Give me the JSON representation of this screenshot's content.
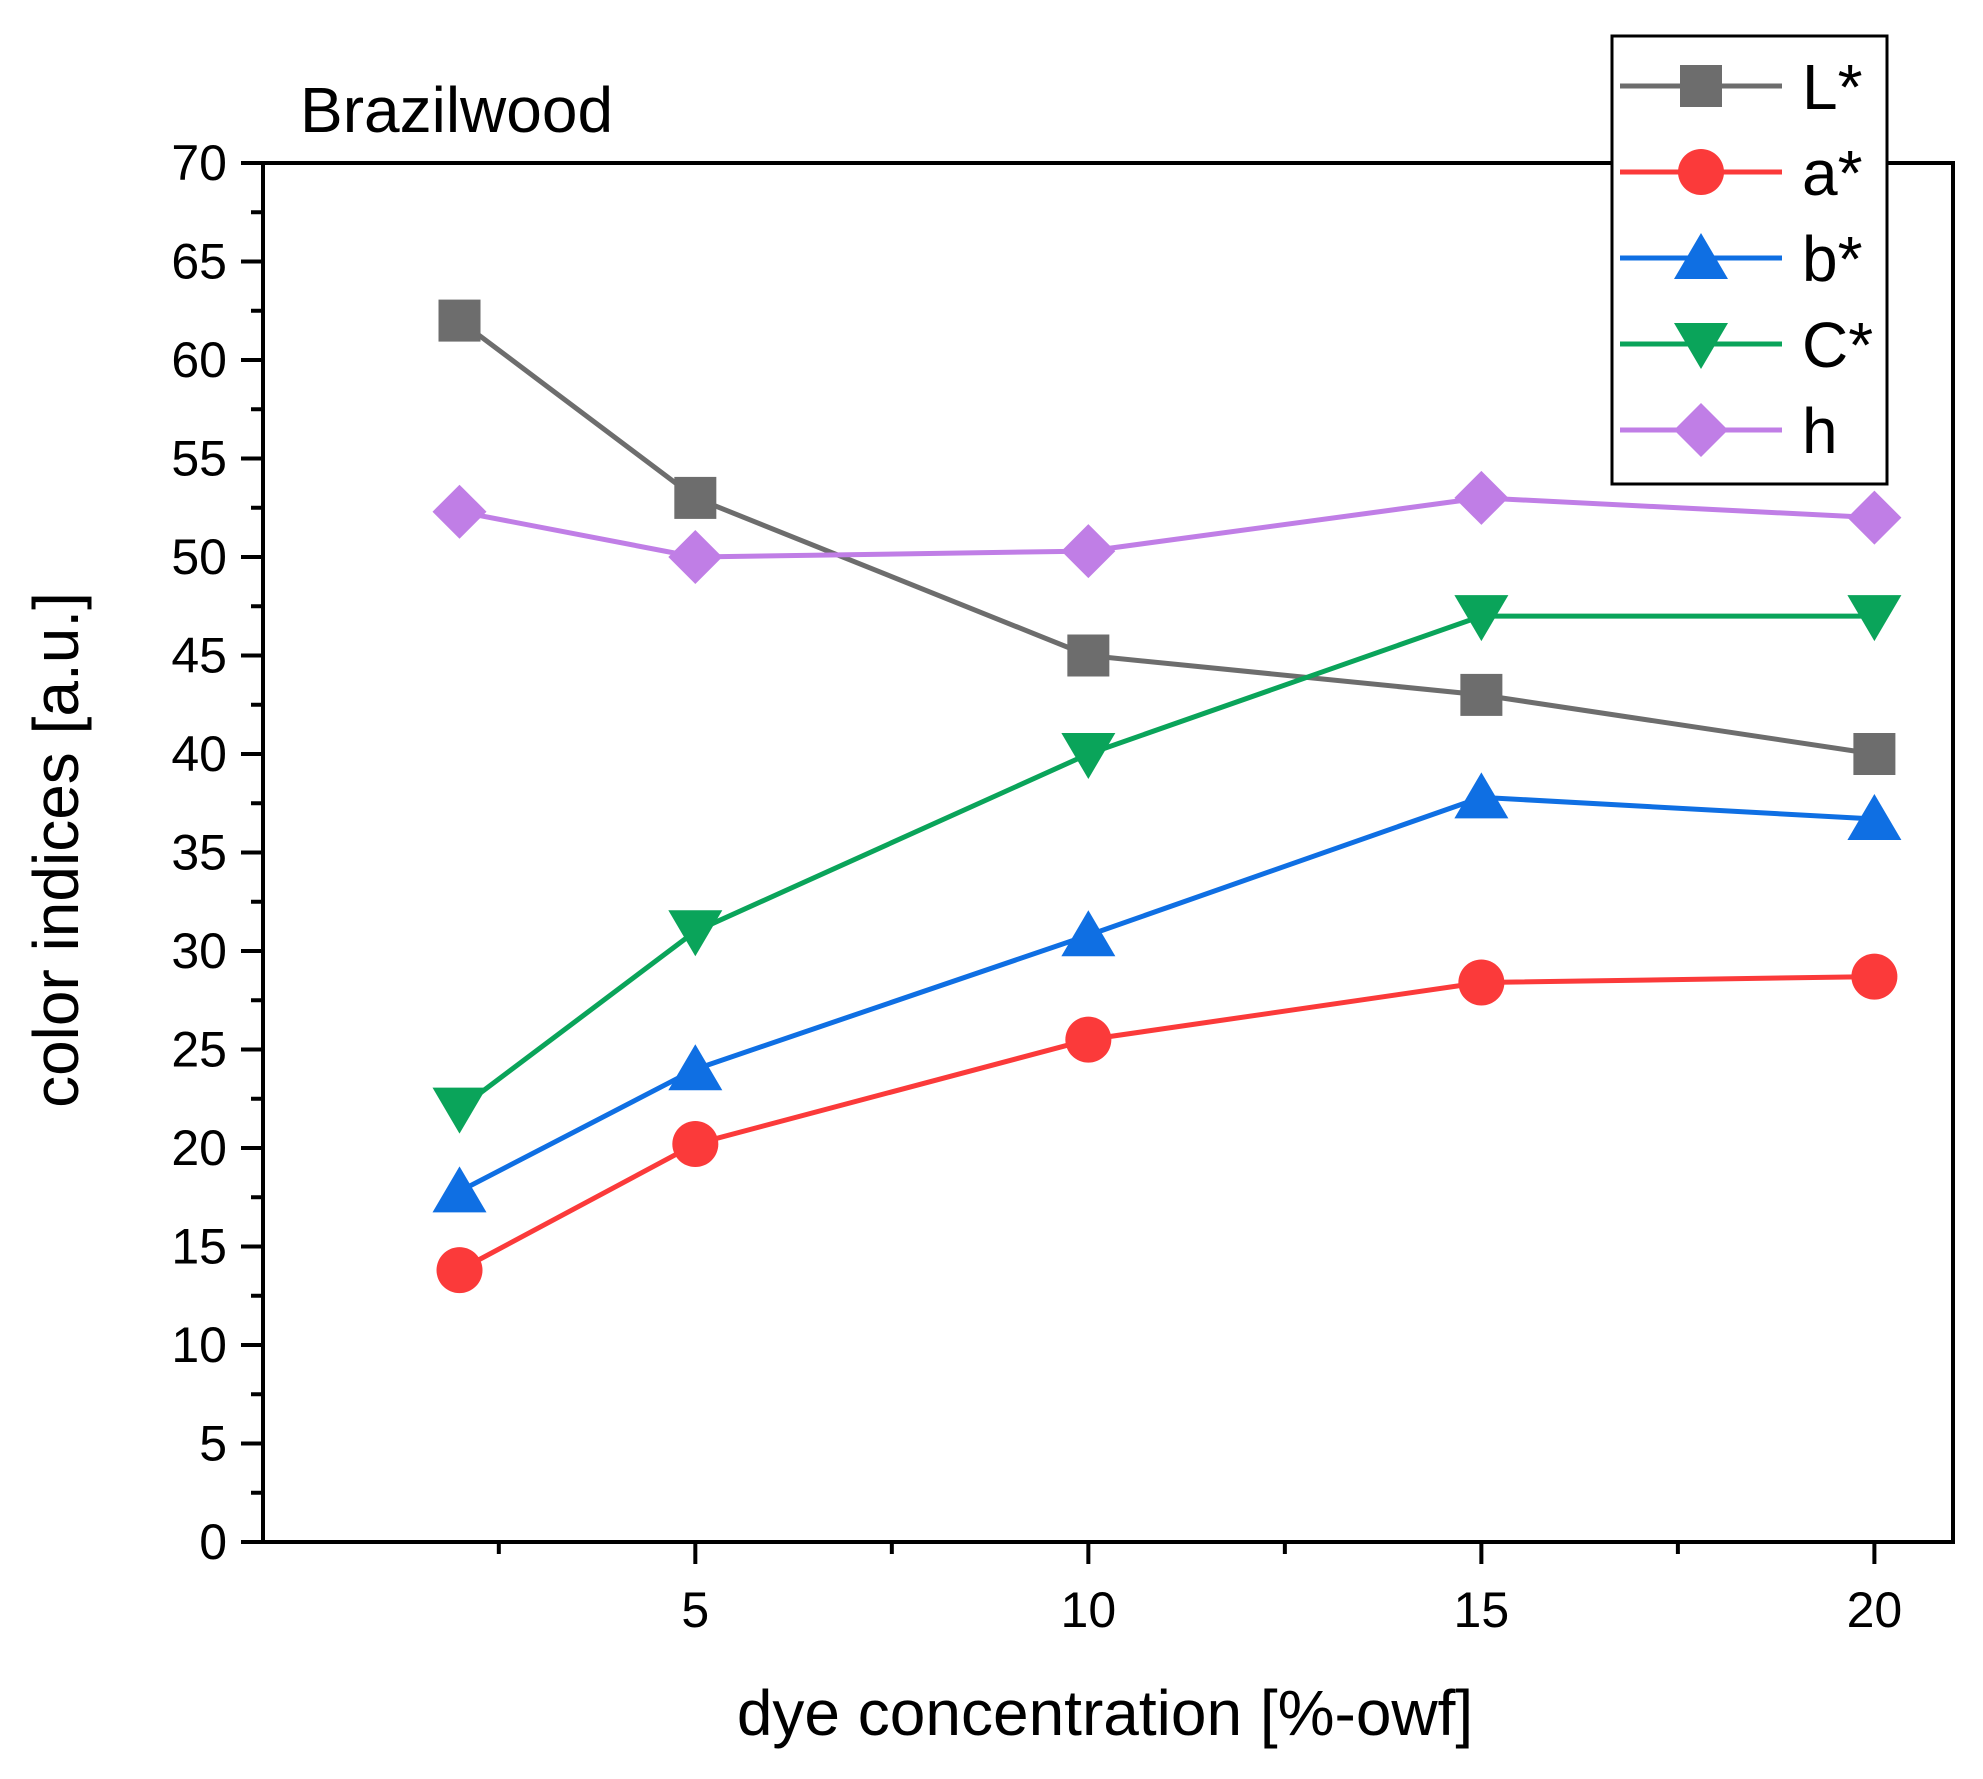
{
  "chart_data": {
    "type": "line",
    "title": "Brazilwood",
    "xlabel": "dye concentration [%-owf]",
    "ylabel": "color indices [a.u.]",
    "x": [
      2,
      5,
      10,
      15,
      20
    ],
    "xlim": [
      -0.5,
      21
    ],
    "ylim": [
      0,
      70
    ],
    "xticks": [
      5,
      10,
      15,
      20
    ],
    "yticks": [
      0,
      5,
      10,
      15,
      20,
      25,
      30,
      35,
      40,
      45,
      50,
      55,
      60,
      65,
      70
    ],
    "grid": false,
    "legend_position": "top-right",
    "series": [
      {
        "name": "L*",
        "marker": "square",
        "color": "#6d6d6d",
        "values": [
          62,
          53,
          45,
          43,
          40
        ]
      },
      {
        "name": "a*",
        "marker": "circle",
        "color": "#fb3a3a",
        "values": [
          13.8,
          20.2,
          25.5,
          28.4,
          28.7
        ]
      },
      {
        "name": "b*",
        "marker": "triangle-up",
        "color": "#0f6fe3",
        "values": [
          17.8,
          24,
          30.8,
          37.8,
          36.7
        ]
      },
      {
        "name": "C*",
        "marker": "triangle-down",
        "color": "#0aa45a",
        "values": [
          22,
          31,
          40,
          47,
          47
        ]
      },
      {
        "name": "h",
        "marker": "diamond",
        "color": "#c07ee6",
        "values": [
          52.3,
          50,
          50.3,
          53,
          52
        ]
      }
    ]
  }
}
